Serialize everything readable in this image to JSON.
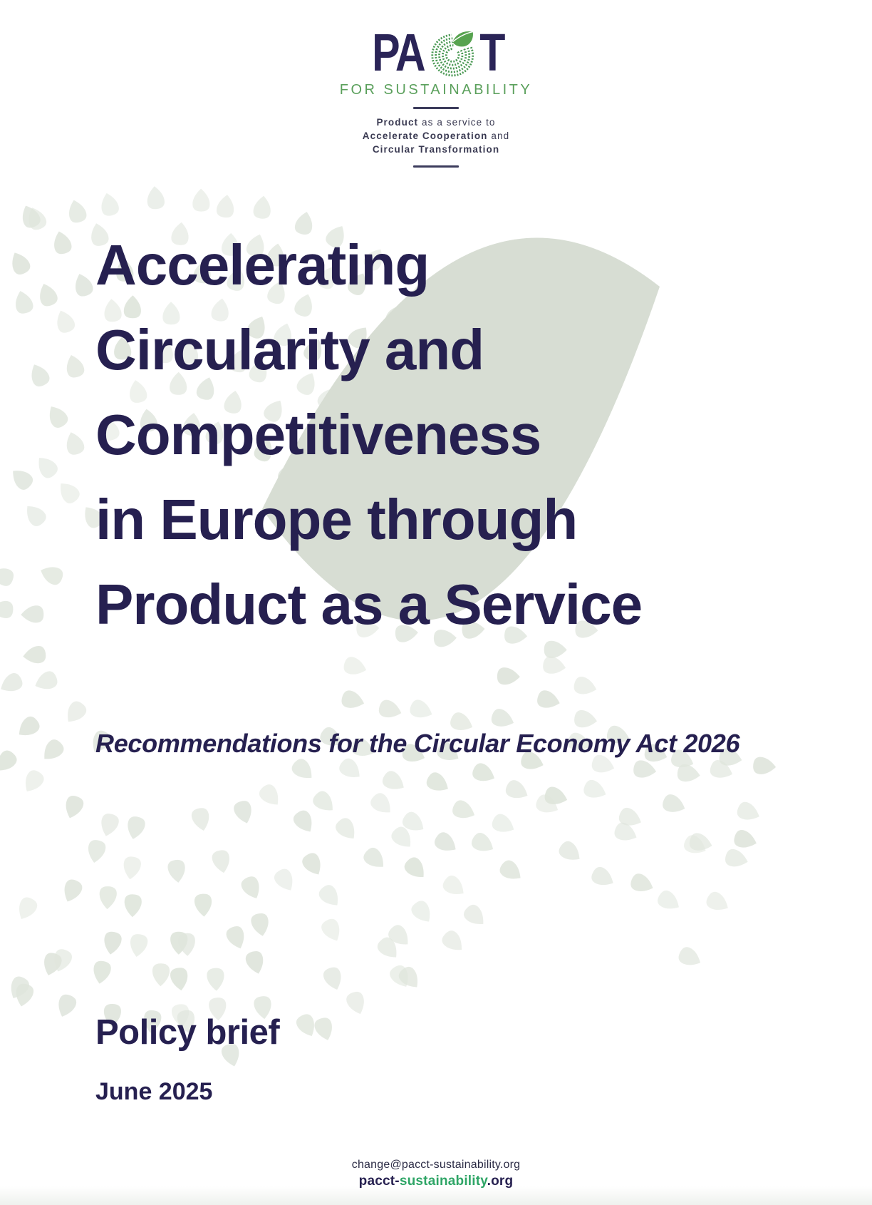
{
  "logo": {
    "wordmark_pa": "PA",
    "wordmark_t": "T",
    "tagline": "FOR SUSTAINABILITY",
    "mission_lines": [
      {
        "bold": "Product",
        "rest": " as a service to"
      },
      {
        "bold": "Accelerate Cooperation",
        "rest": " and"
      },
      {
        "bold": "Circular Transformation",
        "rest": ""
      }
    ]
  },
  "title": {
    "lines": [
      "Accelerating",
      "Circularity and",
      "Competitiveness",
      "in Europe through",
      "Product as a Service"
    ]
  },
  "subtitle": "Recommendations for the Circular Economy Act 2026",
  "doc_type": "Policy brief",
  "date": "June 2025",
  "footer": {
    "email": "change@pacct-sustainability.org",
    "website": {
      "prefix": "pacct-",
      "highlight": "sustainability",
      "suffix": ".org"
    }
  },
  "colors": {
    "navy": "#262050",
    "logo_navy": "#2a2457",
    "logo_green": "#5ba05c",
    "ring_green": "#4c9a55",
    "leaf_green": "#57a34f",
    "footer_green": "#2ea566",
    "background_leaf_sage": "#d7ddd3",
    "background_dots_sage": "#dfe5dc"
  }
}
